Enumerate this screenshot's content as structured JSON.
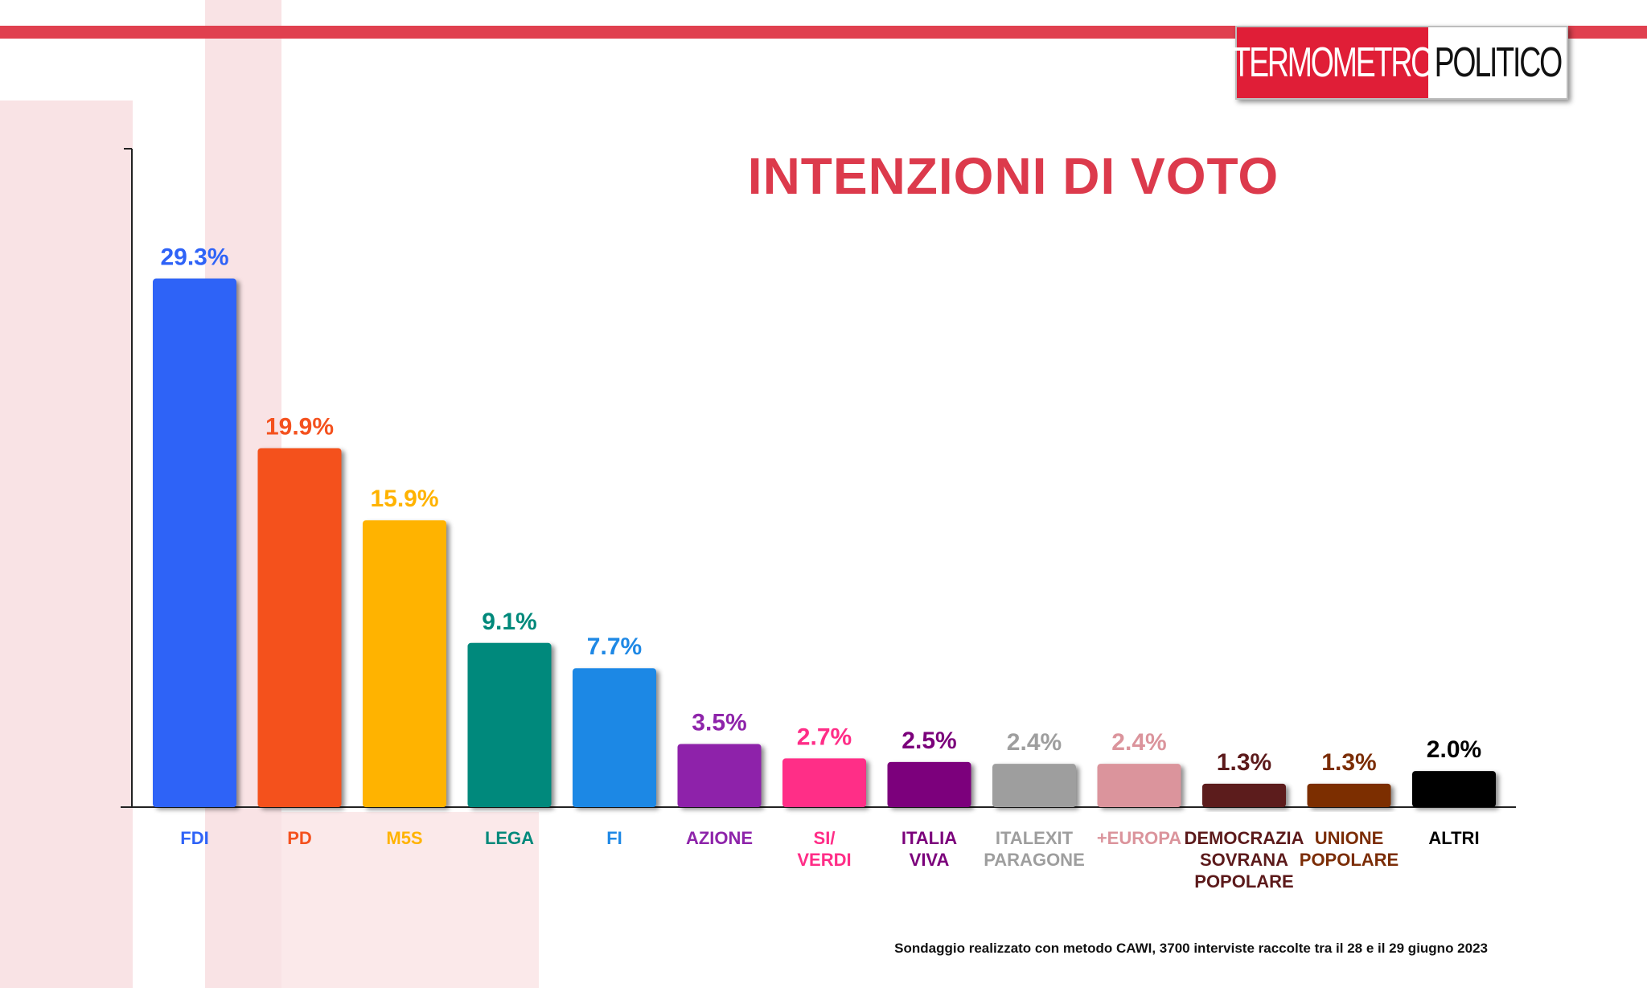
{
  "logo": {
    "part1": "TERMOMETRO",
    "part2": "POLITICO"
  },
  "title": "INTENZIONI DI VOTO",
  "footnote": "Sondaggio realizzato con metodo CAWI, 3700 interviste raccolte tra il 28 e il 29 giugno 2023",
  "chart_data": {
    "type": "bar",
    "title": "INTENZIONI DI VOTO",
    "xlabel": "",
    "ylabel": "",
    "ylim": [
      0,
      36.5
    ],
    "grid": false,
    "categories": [
      [
        "FDI"
      ],
      [
        "PD"
      ],
      [
        "M5S"
      ],
      [
        "LEGA"
      ],
      [
        "FI"
      ],
      [
        "AZIONE"
      ],
      [
        "SI/",
        "VERDI"
      ],
      [
        "ITALIA",
        "VIVA"
      ],
      [
        "ITALEXIT",
        "PARAGONE"
      ],
      [
        "+EUROPA"
      ],
      [
        "DEMOCRAZIA",
        "SOVRANA",
        "POPOLARE"
      ],
      [
        "UNIONE",
        "POPOLARE"
      ],
      [
        "ALTRI"
      ]
    ],
    "values": [
      29.3,
      19.9,
      15.9,
      9.1,
      7.7,
      3.5,
      2.7,
      2.5,
      2.4,
      2.4,
      1.3,
      1.3,
      2.0
    ],
    "value_labels": [
      "29.3%",
      "19.9%",
      "15.9%",
      "9.1%",
      "7.7%",
      "3.5%",
      "2.7%",
      "2.5%",
      "2.4%",
      "2.4%",
      "1.3%",
      "1.3%",
      "2.0%"
    ],
    "colors": [
      "#2f63f7",
      "#f4511e",
      "#ffb300",
      "#00897b",
      "#1e88e5",
      "#8e24aa",
      "#ff2d87",
      "#7b007b",
      "#9e9e9e",
      "#db949c",
      "#5c1a1b",
      "#7b2d06",
      "#000000"
    ]
  }
}
